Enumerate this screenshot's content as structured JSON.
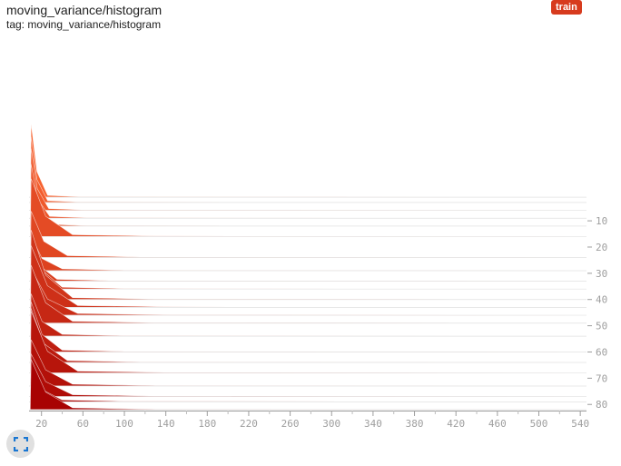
{
  "card": {
    "title": "moving_variance/histogram",
    "tag": "tag: moving_variance/histogram",
    "run_badge": "train"
  },
  "expand_icon": "fullscreen-icon",
  "colors": {
    "badge": "#d73b1e",
    "early_step": "#f7622f",
    "late_step": "#a80303"
  },
  "chart_data": {
    "type": "histogram",
    "mode": "offset",
    "x_ticks": [
      "20",
      "60",
      "100",
      "140",
      "180",
      "220",
      "260",
      "300",
      "340",
      "380",
      "420",
      "460",
      "500",
      "540"
    ],
    "x_range": [
      8,
      546
    ],
    "step_ticks": [
      "10",
      "20",
      "30",
      "40",
      "50",
      "60",
      "70",
      "80"
    ],
    "step_range": [
      2,
      82
    ],
    "steps": [
      {
        "step": 1,
        "peak": 0.95,
        "spread": 16
      },
      {
        "step": 3,
        "peak": 0.85,
        "spread": 16
      },
      {
        "step": 6,
        "peak": 0.8,
        "spread": 17
      },
      {
        "step": 9,
        "peak": 0.7,
        "spread": 18
      },
      {
        "step": 12,
        "peak": 0.55,
        "spread": 18
      },
      {
        "step": 16,
        "peak": 0.75,
        "spread": 40
      },
      {
        "step": 24,
        "peak": 0.6,
        "spread": 35
      },
      {
        "step": 29,
        "peak": 0.45,
        "spread": 30
      },
      {
        "step": 33,
        "peak": 0.55,
        "spread": 25
      },
      {
        "step": 36,
        "peak": 0.7,
        "spread": 30
      },
      {
        "step": 40,
        "peak": 0.9,
        "spread": 40
      },
      {
        "step": 43,
        "peak": 0.8,
        "spread": 45
      },
      {
        "step": 46,
        "peak": 0.6,
        "spread": 45
      },
      {
        "step": 49,
        "peak": 0.75,
        "spread": 40
      },
      {
        "step": 54,
        "peak": 0.55,
        "spread": 30
      },
      {
        "step": 60,
        "peak": 0.65,
        "spread": 30
      },
      {
        "step": 64,
        "peak": 0.7,
        "spread": 35
      },
      {
        "step": 68,
        "peak": 0.8,
        "spread": 45
      },
      {
        "step": 73,
        "peak": 0.6,
        "spread": 40
      },
      {
        "step": 77,
        "peak": 0.55,
        "spread": 40
      },
      {
        "step": 79,
        "peak": 0.45,
        "spread": 30
      },
      {
        "step": 82,
        "peak": 0.65,
        "spread": 40
      }
    ]
  }
}
